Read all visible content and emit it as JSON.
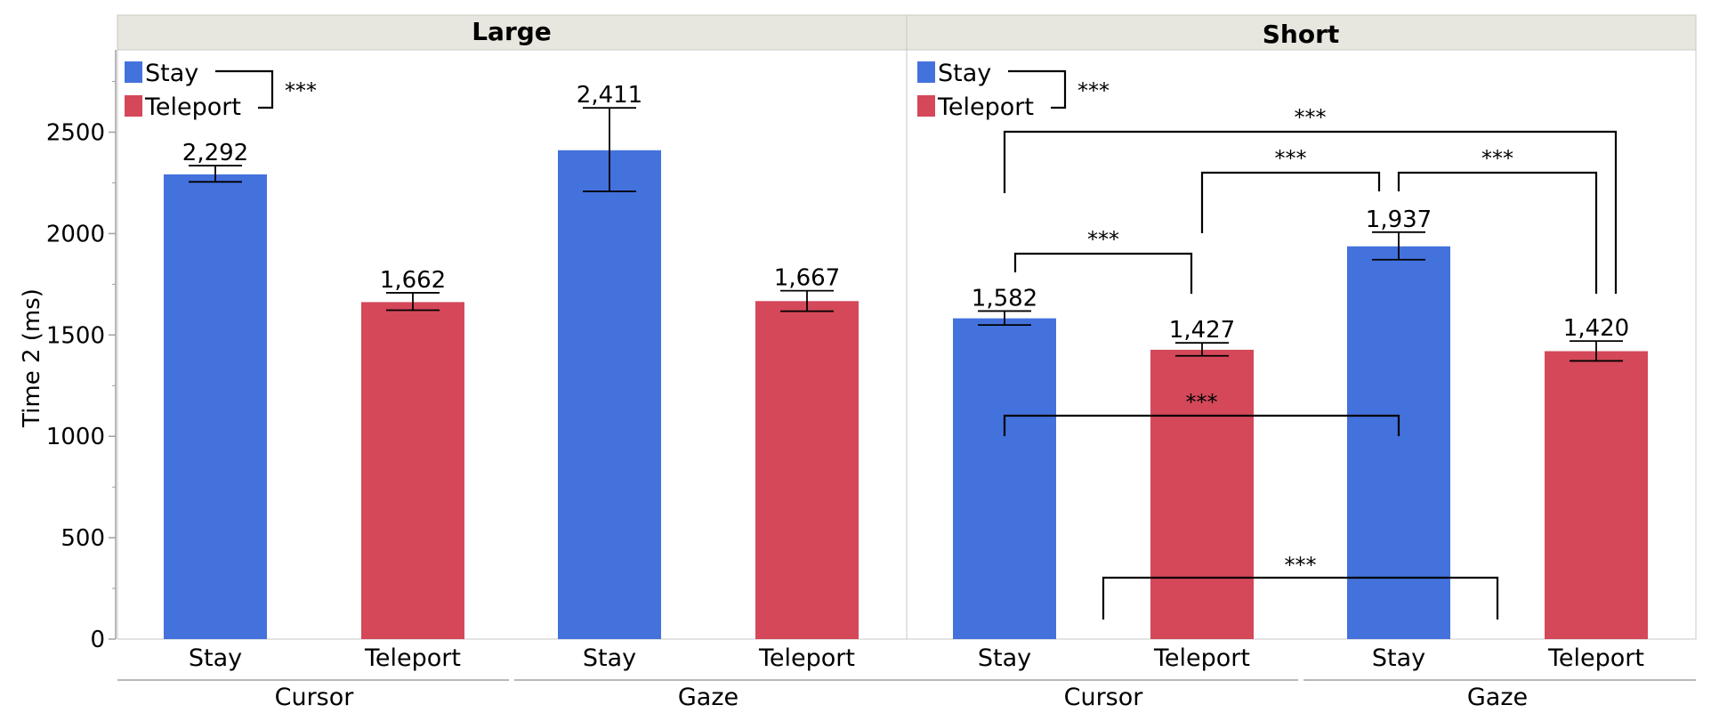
{
  "colors": {
    "stay": "#4472dd",
    "teleport": "#d4485a",
    "header_bg": "#e8e7df",
    "axis": "#a0a0a0"
  },
  "chart_data": {
    "type": "bar",
    "ylabel": "Time 2 (ms)",
    "ylim": [
      0,
      2900
    ],
    "yticks": [
      "0",
      "500",
      "1000",
      "1500",
      "2000",
      "2500"
    ],
    "legend": {
      "placement": "top-left",
      "items": [
        "Stay",
        "Teleport"
      ],
      "significance": "***"
    },
    "groups": [
      "Cursor",
      "Gaze"
    ],
    "categories": [
      "Stay",
      "Teleport"
    ],
    "panels": [
      {
        "title": "Large",
        "bars": [
          {
            "group": "Cursor",
            "category": "Stay",
            "value": 2292,
            "label": "2,292",
            "err_low": 2255,
            "err_high": 2335
          },
          {
            "group": "Cursor",
            "category": "Teleport",
            "value": 1662,
            "label": "1,662",
            "err_low": 1622,
            "err_high": 1708
          },
          {
            "group": "Gaze",
            "category": "Stay",
            "value": 2411,
            "label": "2,411",
            "err_low": 2208,
            "err_high": 2620
          },
          {
            "group": "Gaze",
            "category": "Teleport",
            "value": 1667,
            "label": "1,667",
            "err_low": 1617,
            "err_high": 1718
          }
        ],
        "comparisons": []
      },
      {
        "title": "Short",
        "bars": [
          {
            "group": "Cursor",
            "category": "Stay",
            "value": 1582,
            "label": "1,582",
            "err_low": 1549,
            "err_high": 1618
          },
          {
            "group": "Cursor",
            "category": "Teleport",
            "value": 1427,
            "label": "1,427",
            "err_low": 1397,
            "err_high": 1461
          },
          {
            "group": "Gaze",
            "category": "Stay",
            "value": 1937,
            "label": "1,937",
            "err_low": 1871,
            "err_high": 2007
          },
          {
            "group": "Gaze",
            "category": "Teleport",
            "value": 1420,
            "label": "1,420",
            "err_low": 1372,
            "err_high": 1470
          }
        ],
        "comparisons": [
          {
            "from": 0,
            "to": 3,
            "label": "***"
          },
          {
            "from": 1,
            "to": 2,
            "label": "***"
          },
          {
            "from": 2,
            "to": 3,
            "label": "***"
          },
          {
            "from": 0,
            "to": 1,
            "label": "***"
          },
          {
            "from": 0,
            "to": 2,
            "label": "***"
          },
          {
            "from": 1,
            "to": 3,
            "label": "***"
          }
        ]
      }
    ]
  }
}
